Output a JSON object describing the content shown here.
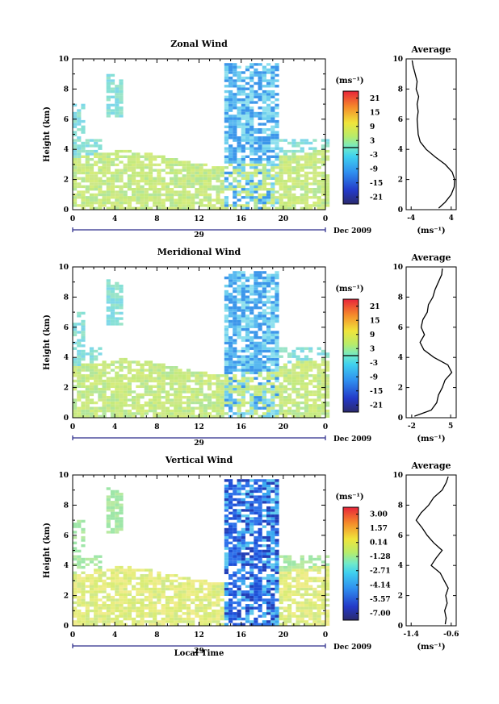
{
  "x_label": "Local Time",
  "date_label": "Dec 2009",
  "day_label": "29",
  "unit_label": "(ms⁻¹)",
  "average_title": "Average",
  "y_label": "Height (km)",
  "x_ticks": [
    "0",
    "4",
    "8",
    "12",
    "16",
    "20",
    "0"
  ],
  "y_ticks": [
    "0",
    "2",
    "4",
    "6",
    "8",
    "10"
  ],
  "chart_data": [
    {
      "type": "heatmap",
      "title": "Zonal Wind",
      "xlabel": "",
      "ylabel": "Height (km)",
      "xlim": [
        0,
        24
      ],
      "ylim": [
        0,
        10
      ],
      "colorbar_unit": "(ms⁻¹)",
      "colorbar_ticks": [
        "21",
        "15",
        "9",
        "3",
        "-3",
        "-9",
        "-15",
        "-21"
      ],
      "colorbar_range": [
        -24,
        24
      ],
      "contour_marker": 3,
      "average": {
        "xticks": [
          "-4",
          "4"
        ],
        "xlim": [
          -5,
          5
        ],
        "heights": [
          0.1,
          0.5,
          1.0,
          1.5,
          2.0,
          2.5,
          3.0,
          3.5,
          4.0,
          4.5,
          5.0,
          5.5,
          6.0,
          6.5,
          7.0,
          7.5,
          8.0,
          8.5,
          9.0,
          9.5,
          9.9
        ],
        "values": [
          1.5,
          2.8,
          4.0,
          4.6,
          4.7,
          4.2,
          2.8,
          0.8,
          -1.0,
          -2.2,
          -2.6,
          -2.7,
          -2.8,
          -2.6,
          -2.8,
          -2.5,
          -3.0,
          -2.8,
          -3.2,
          -3.6,
          -3.8
        ]
      }
    },
    {
      "type": "heatmap",
      "title": "Meridional Wind",
      "xlabel": "",
      "ylabel": "Height (km)",
      "xlim": [
        0,
        24
      ],
      "ylim": [
        0,
        10
      ],
      "colorbar_unit": "(ms⁻¹)",
      "colorbar_ticks": [
        "21",
        "15",
        "9",
        "3",
        "-3",
        "-9",
        "-15",
        "-21"
      ],
      "colorbar_range": [
        -24,
        24
      ],
      "contour_marker": 3,
      "average": {
        "xticks": [
          "-2",
          "5"
        ],
        "xlim": [
          -3,
          6
        ],
        "heights": [
          0.1,
          0.5,
          1.0,
          1.5,
          2.0,
          2.5,
          3.0,
          3.5,
          4.0,
          4.5,
          5.0,
          5.5,
          6.0,
          6.5,
          7.0,
          7.5,
          8.0,
          8.5,
          9.0,
          9.5,
          9.9
        ],
        "values": [
          -1.5,
          1.5,
          2.5,
          2.8,
          3.5,
          4.0,
          5.2,
          4.5,
          2.0,
          0.2,
          -0.5,
          0.3,
          -0.3,
          0.0,
          0.8,
          1.0,
          1.8,
          2.2,
          2.8,
          3.4,
          3.5
        ]
      }
    },
    {
      "type": "heatmap",
      "title": "Vertical Wind",
      "xlabel": "Local Time",
      "ylabel": "Height (km)",
      "xlim": [
        0,
        24
      ],
      "ylim": [
        0,
        10
      ],
      "colorbar_unit": "(ms⁻¹)",
      "colorbar_ticks": [
        "3.00",
        "1.57",
        "0.14",
        "-1.28",
        "-2.71",
        "-4.14",
        "-5.57",
        "-7.00"
      ],
      "colorbar_range": [
        -7.7,
        3.7
      ],
      "contour_marker": null,
      "average": {
        "xticks": [
          "-1.4",
          "-0.6"
        ],
        "xlim": [
          -1.5,
          -0.5
        ],
        "heights": [
          0.1,
          0.5,
          1.0,
          1.5,
          2.0,
          2.5,
          3.0,
          3.5,
          4.0,
          4.5,
          5.0,
          5.5,
          6.0,
          6.5,
          7.0,
          7.5,
          8.0,
          8.5,
          9.0,
          9.5,
          9.9
        ],
        "values": [
          -0.72,
          -0.7,
          -0.73,
          -0.68,
          -0.71,
          -0.66,
          -0.74,
          -0.82,
          -1.0,
          -0.9,
          -0.78,
          -0.95,
          -1.08,
          -1.18,
          -1.3,
          -1.2,
          -1.05,
          -0.95,
          -0.78,
          -0.7,
          -0.66
        ]
      }
    }
  ]
}
